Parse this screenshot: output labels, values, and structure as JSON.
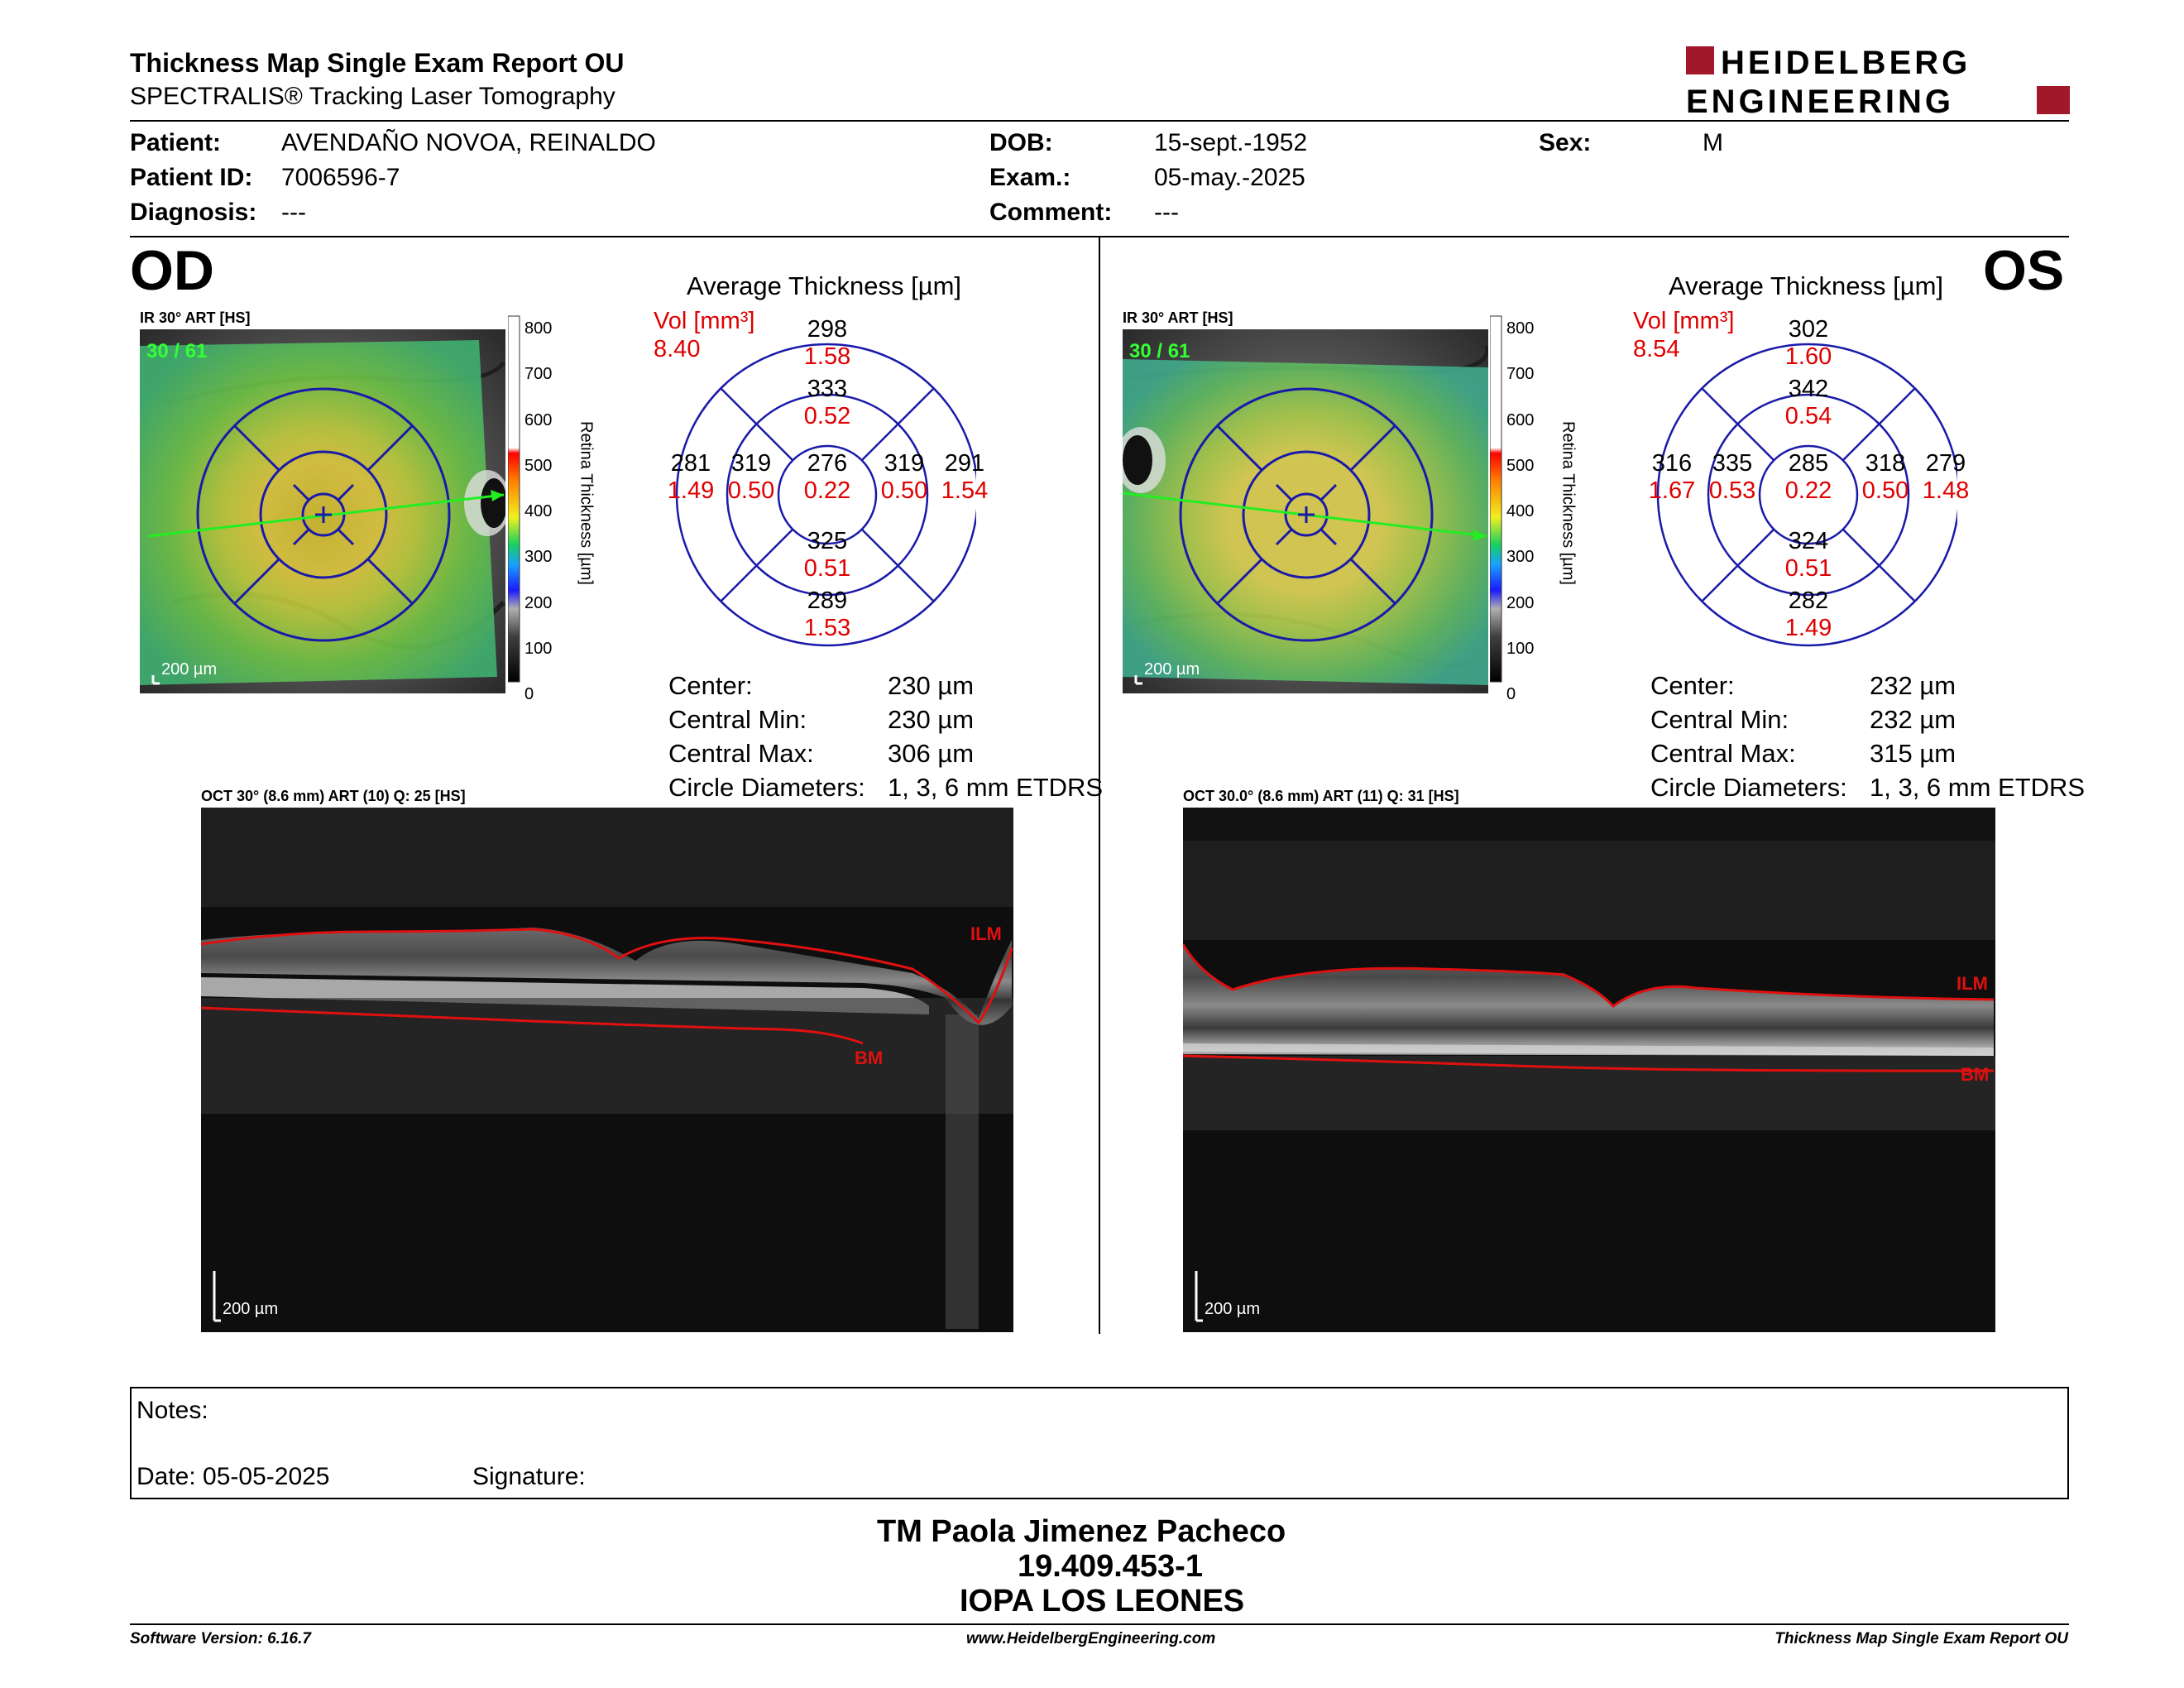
{
  "header": {
    "title": "Thickness Map Single Exam Report OU",
    "subtitle": "SPECTRALIS® Tracking Laser Tomography",
    "logo_line1": "HEIDELBERG",
    "logo_line2": "ENGINEERING"
  },
  "patient": {
    "patient_label": "Patient:",
    "patient_value": "AVENDAÑO NOVOA, REINALDO",
    "id_label": "Patient ID:",
    "id_value": "7006596-7",
    "diag_label": "Diagnosis:",
    "diag_value": "---",
    "dob_label": "DOB:",
    "dob_value": "15-sept.-1952",
    "exam_label": "Exam.:",
    "exam_value": "05-may.-2025",
    "comment_label": "Comment:",
    "comment_value": "---",
    "sex_label": "Sex:",
    "sex_value": "M"
  },
  "od": {
    "eye": "OD",
    "ir_label": "IR 30° ART [HS]",
    "ir_overlay": "30 / 61",
    "scale_text": "200 µm",
    "avg_title": "Average Thickness [µm]",
    "vol_label": "Vol [mm³]",
    "vol_total": "8.40",
    "sectors": {
      "sup_out": "298",
      "sup_out_v": "1.58",
      "sup_in": "333",
      "sup_in_v": "0.52",
      "temp_out": "281",
      "temp_out_v": "1.49",
      "temp_in": "319",
      "temp_in_v": "0.50",
      "center": "276",
      "center_v": "0.22",
      "nas_in": "319",
      "nas_in_v": "0.50",
      "nas_out": "291",
      "nas_out_v": "1.54",
      "inf_in": "325",
      "inf_in_v": "0.51",
      "inf_out": "289",
      "inf_out_v": "1.53"
    },
    "stats": [
      {
        "label": "Center:",
        "value": "230 µm"
      },
      {
        "label": "Central Min:",
        "value": "230 µm"
      },
      {
        "label": "Central Max:",
        "value": "306 µm"
      },
      {
        "label": "Circle Diameters:",
        "value": "1, 3, 6 mm ETDRS"
      }
    ],
    "oct_label": "OCT 30° (8.6 mm) ART (10) Q: 25 [HS]",
    "ilm": "ILM",
    "bm": "BM"
  },
  "os": {
    "eye": "OS",
    "ir_label": "IR 30° ART [HS]",
    "ir_overlay": "30 / 61",
    "scale_text": "200 µm",
    "avg_title": "Average Thickness [µm]",
    "vol_label": "Vol [mm³]",
    "vol_total": "8.54",
    "sectors": {
      "sup_out": "302",
      "sup_out_v": "1.60",
      "sup_in": "342",
      "sup_in_v": "0.54",
      "temp_out": "316",
      "temp_out_v": "1.67",
      "temp_in": "335",
      "temp_in_v": "0.53",
      "center": "285",
      "center_v": "0.22",
      "nas_in": "318",
      "nas_in_v": "0.50",
      "nas_out": "279",
      "nas_out_v": "1.48",
      "inf_in": "324",
      "inf_in_v": "0.51",
      "inf_out": "282",
      "inf_out_v": "1.49"
    },
    "stats": [
      {
        "label": "Center:",
        "value": "232 µm"
      },
      {
        "label": "Central Min:",
        "value": "232 µm"
      },
      {
        "label": "Central Max:",
        "value": "315 µm"
      },
      {
        "label": "Circle Diameters:",
        "value": "1, 3, 6 mm ETDRS"
      }
    ],
    "oct_label": "OCT 30.0° (8.6 mm) ART (11) Q: 31 [HS]",
    "ilm": "ILM",
    "bm": "BM"
  },
  "colorbar": {
    "ticks": [
      "800",
      "700",
      "600",
      "500",
      "400",
      "300",
      "200",
      "100",
      "0"
    ],
    "title": "Retina Thickness [µm]"
  },
  "notes": {
    "notes_label": "Notes:",
    "date_label": "Date: 05-05-2025",
    "signature_label": "Signature:"
  },
  "signature": {
    "line1": "TM Paola Jimenez Pacheco",
    "line2": "19.409.453-1",
    "line3": "IOPA LOS LEONES"
  },
  "footer": {
    "left": "Software Version: 6.16.7",
    "center": "www.HeidelbergEngineering.com",
    "right": "Thickness Map Single Exam Report OU"
  },
  "colors": {
    "black_text": "#000000",
    "volume_red": "#e00000",
    "etdrs_blue": "#1a1aaa",
    "logo_red": "#a01829",
    "overlay_green": "#33ff33"
  }
}
